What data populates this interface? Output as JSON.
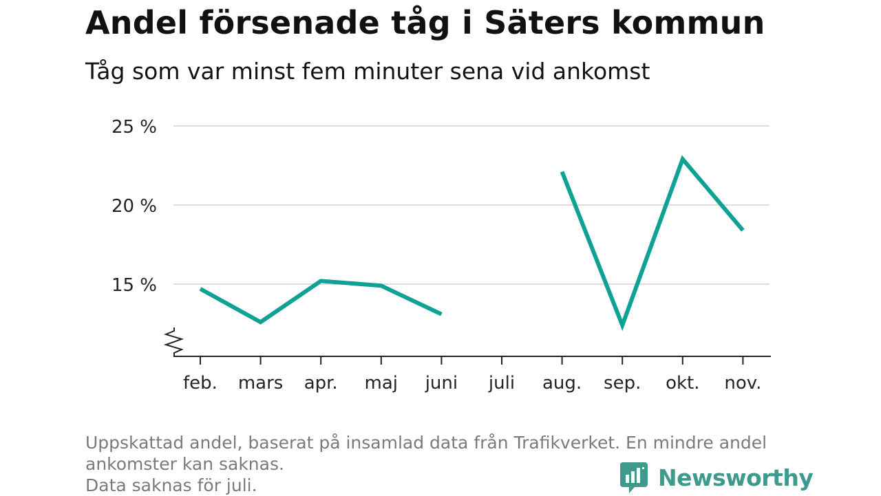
{
  "header": {
    "title": "Andel försenade tåg i Säters kommun",
    "subtitle": "Tåg som var minst fem minuter sena vid ankomst"
  },
  "footer": {
    "note_line1": "Uppskattad andel, baserat på insamlad data från Trafikverket. En mindre andel",
    "note_line2": "ankomster kan saknas.",
    "note_line3": "Data saknas för juli."
  },
  "brand": {
    "name": "Newsworthy",
    "color": "#3e9a8c"
  },
  "chart_data": {
    "type": "line",
    "title": "Andel försenade tåg i Säters kommun",
    "subtitle": "Tåg som var minst fem minuter sena vid ankomst",
    "categories": [
      "feb.",
      "mars",
      "apr.",
      "maj",
      "juni",
      "juli",
      "aug.",
      "sep.",
      "okt.",
      "nov."
    ],
    "series": [
      {
        "values": [
          14.7,
          12.6,
          15.2,
          14.9,
          13.1,
          null,
          22.1,
          12.4,
          22.9,
          18.4
        ]
      }
    ],
    "yticks": [
      15,
      20,
      25
    ],
    "ytick_labels": [
      "15 %",
      "20 %",
      "25 %"
    ],
    "ylim": [
      10.5,
      25
    ],
    "axis_break": true,
    "grid": true,
    "line_color": "#10a195",
    "grid_color": "#dcdcdc"
  }
}
